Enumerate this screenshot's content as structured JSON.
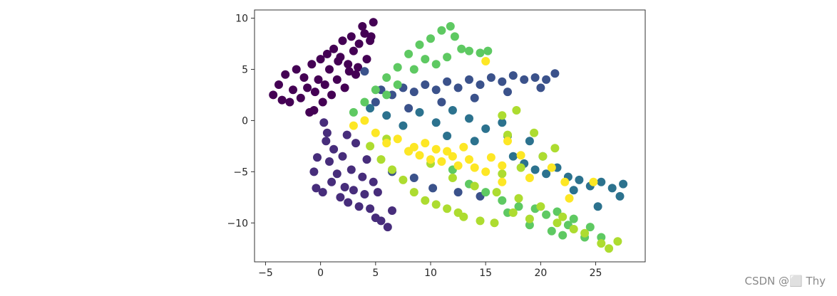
{
  "chart_data": {
    "type": "scatter",
    "title": "",
    "xlabel": "",
    "ylabel": "",
    "xlim": [
      -6.0,
      29.5
    ],
    "ylim": [
      -13.8,
      10.8
    ],
    "xticks": [
      -5,
      0,
      5,
      10,
      15,
      20,
      25
    ],
    "yticks": [
      -10,
      -5,
      0,
      5,
      10
    ],
    "xtick_labels": [
      "−5",
      "0",
      "5",
      "10",
      "15",
      "20",
      "25"
    ],
    "ytick_labels": [
      "−10",
      "−5",
      "0",
      "5",
      "10"
    ],
    "grid": false,
    "legend": "none",
    "colormap": "viridis",
    "series": [
      {
        "color": "#440154",
        "points": [
          [
            -4.3,
            2.5
          ],
          [
            -3.8,
            3.5
          ],
          [
            -3.2,
            4.5
          ],
          [
            -2.8,
            1.8
          ],
          [
            -2.5,
            3.0
          ],
          [
            -2.2,
            5.0
          ],
          [
            -1.8,
            2.2
          ],
          [
            -1.5,
            4.2
          ],
          [
            -1.2,
            3.2
          ],
          [
            -1.0,
            0.8
          ],
          [
            -0.8,
            5.5
          ],
          [
            -0.5,
            2.8
          ],
          [
            -0.2,
            4.0
          ],
          [
            0.0,
            6.0
          ],
          [
            0.2,
            1.8
          ],
          [
            0.4,
            3.5
          ],
          [
            0.6,
            6.5
          ],
          [
            0.8,
            5.0
          ],
          [
            1.0,
            2.5
          ],
          [
            1.2,
            7.0
          ],
          [
            1.5,
            4.0
          ],
          [
            1.8,
            6.2
          ],
          [
            2.0,
            7.8
          ],
          [
            2.2,
            3.2
          ],
          [
            2.5,
            5.5
          ],
          [
            2.8,
            8.2
          ],
          [
            3.0,
            6.8
          ],
          [
            3.2,
            4.5
          ],
          [
            3.5,
            7.5
          ],
          [
            3.8,
            9.2
          ],
          [
            4.0,
            8.5
          ],
          [
            4.2,
            6.0
          ],
          [
            4.5,
            7.8
          ],
          [
            4.8,
            9.6
          ],
          [
            3.4,
            5.2
          ],
          [
            1.6,
            5.8
          ],
          [
            -0.6,
            1.0
          ],
          [
            -3.5,
            2.0
          ],
          [
            2.6,
            4.8
          ],
          [
            4.6,
            8.2
          ]
        ]
      },
      {
        "color": "#472d7b",
        "points": [
          [
            0.3,
            -0.2
          ],
          [
            0.5,
            -2.0
          ],
          [
            0.8,
            -4.0
          ],
          [
            1.0,
            -6.0
          ],
          [
            0.2,
            -7.0
          ],
          [
            -0.4,
            -6.6
          ],
          [
            -0.6,
            -5.0
          ],
          [
            -0.3,
            -3.6
          ],
          [
            1.2,
            -2.8
          ],
          [
            1.5,
            -5.2
          ],
          [
            1.8,
            -7.5
          ],
          [
            2.0,
            -3.5
          ],
          [
            2.2,
            -6.5
          ],
          [
            2.5,
            -8.0
          ],
          [
            2.8,
            -4.8
          ],
          [
            3.0,
            -6.8
          ],
          [
            3.2,
            -2.2
          ],
          [
            3.5,
            -8.4
          ],
          [
            3.8,
            -5.5
          ],
          [
            4.0,
            -7.2
          ],
          [
            4.2,
            -3.8
          ],
          [
            4.5,
            -8.6
          ],
          [
            5.0,
            -9.5
          ],
          [
            5.5,
            -9.8
          ],
          [
            6.1,
            -10.4
          ],
          [
            5.2,
            -7.0
          ],
          [
            6.5,
            -8.8
          ],
          [
            0.6,
            -1.2
          ],
          [
            2.4,
            -1.4
          ],
          [
            4.8,
            -6.0
          ]
        ]
      },
      {
        "color": "#3b528b",
        "points": [
          [
            4.0,
            4.8
          ],
          [
            5.5,
            3.0
          ],
          [
            6.5,
            2.5
          ],
          [
            7.5,
            3.2
          ],
          [
            8.5,
            2.8
          ],
          [
            9.5,
            3.5
          ],
          [
            10.5,
            3.0
          ],
          [
            11.5,
            3.8
          ],
          [
            12.5,
            3.2
          ],
          [
            13.5,
            4.0
          ],
          [
            14.5,
            3.5
          ],
          [
            15.5,
            4.2
          ],
          [
            16.5,
            3.8
          ],
          [
            17.5,
            4.4
          ],
          [
            18.5,
            4.0
          ],
          [
            19.5,
            4.2
          ],
          [
            20.5,
            4.0
          ],
          [
            21.3,
            4.6
          ],
          [
            5.0,
            1.8
          ],
          [
            8.0,
            1.2
          ],
          [
            11.0,
            1.8
          ],
          [
            14.0,
            2.2
          ],
          [
            17.0,
            2.8
          ],
          [
            20.0,
            3.2
          ],
          [
            6.5,
            -5.0
          ],
          [
            8.5,
            -5.6
          ],
          [
            10.2,
            -6.6
          ],
          [
            12.5,
            -7.0
          ],
          [
            14.5,
            -7.4
          ]
        ]
      },
      {
        "color": "#2c728e",
        "points": [
          [
            4.5,
            1.2
          ],
          [
            6.0,
            0.5
          ],
          [
            7.5,
            -0.5
          ],
          [
            9.0,
            0.8
          ],
          [
            10.5,
            -0.2
          ],
          [
            12.0,
            1.0
          ],
          [
            13.5,
            0.2
          ],
          [
            15.0,
            -0.8
          ],
          [
            16.5,
            -0.2
          ],
          [
            17.5,
            -3.5
          ],
          [
            18.5,
            -4.2
          ],
          [
            19.5,
            -4.8
          ],
          [
            20.5,
            -5.2
          ],
          [
            21.5,
            -4.6
          ],
          [
            22.5,
            -5.5
          ],
          [
            23.5,
            -5.8
          ],
          [
            24.5,
            -6.4
          ],
          [
            25.5,
            -6.0
          ],
          [
            26.5,
            -6.6
          ],
          [
            27.5,
            -6.2
          ],
          [
            27.2,
            -7.4
          ],
          [
            25.2,
            -8.4
          ],
          [
            23.0,
            -6.8
          ],
          [
            20.2,
            -3.5
          ],
          [
            19.0,
            -2.0
          ],
          [
            17.0,
            -1.5
          ],
          [
            14.0,
            -2.0
          ],
          [
            11.5,
            -1.5
          ]
        ]
      },
      {
        "color": "#5ec962",
        "points": [
          [
            3.0,
            0.8
          ],
          [
            4.0,
            1.8
          ],
          [
            5.0,
            3.0
          ],
          [
            6.0,
            4.2
          ],
          [
            7.0,
            5.2
          ],
          [
            8.0,
            6.5
          ],
          [
            9.0,
            7.4
          ],
          [
            10.0,
            8.0
          ],
          [
            11.0,
            8.8
          ],
          [
            11.8,
            9.2
          ],
          [
            12.2,
            8.2
          ],
          [
            12.8,
            7.0
          ],
          [
            13.5,
            6.8
          ],
          [
            14.5,
            6.6
          ],
          [
            15.2,
            6.8
          ],
          [
            8.5,
            5.0
          ],
          [
            9.5,
            6.0
          ],
          [
            10.5,
            5.5
          ],
          [
            11.5,
            6.2
          ],
          [
            7.0,
            3.5
          ],
          [
            6.0,
            2.5
          ],
          [
            12.0,
            -4.8
          ],
          [
            13.5,
            -6.2
          ],
          [
            15.0,
            -7.0
          ],
          [
            16.5,
            -7.8
          ],
          [
            18.0,
            -8.4
          ],
          [
            19.5,
            -8.6
          ],
          [
            20.5,
            -9.2
          ],
          [
            21.5,
            -8.9
          ],
          [
            22.5,
            -10.2
          ],
          [
            23.0,
            -9.6
          ],
          [
            24.5,
            -10.4
          ],
          [
            25.5,
            -11.4
          ],
          [
            17.0,
            -9.0
          ],
          [
            19.0,
            -10.2
          ],
          [
            21.0,
            -10.8
          ],
          [
            22.0,
            -11.2
          ],
          [
            24.0,
            -11.4
          ]
        ]
      },
      {
        "color": "#addc30",
        "points": [
          [
            4.5,
            -2.5
          ],
          [
            5.5,
            -3.8
          ],
          [
            6.5,
            -4.8
          ],
          [
            7.5,
            -5.8
          ],
          [
            8.5,
            -7.0
          ],
          [
            9.5,
            -7.8
          ],
          [
            10.5,
            -8.2
          ],
          [
            11.5,
            -8.6
          ],
          [
            12.5,
            -9.0
          ],
          [
            13.0,
            -9.4
          ],
          [
            14.5,
            -9.8
          ],
          [
            15.8,
            -10.0
          ],
          [
            6.0,
            -1.8
          ],
          [
            8.0,
            -3.0
          ],
          [
            10.0,
            -4.2
          ],
          [
            12.0,
            -5.6
          ],
          [
            14.0,
            -6.4
          ],
          [
            16.0,
            -7.0
          ],
          [
            18.0,
            -7.6
          ],
          [
            20.0,
            -8.4
          ],
          [
            22.0,
            -9.4
          ],
          [
            24.0,
            -11.0
          ],
          [
            25.5,
            -12.0
          ],
          [
            26.2,
            -12.5
          ],
          [
            27.0,
            -11.8
          ],
          [
            23.0,
            -10.6
          ],
          [
            21.5,
            -10.0
          ],
          [
            19.0,
            -9.6
          ],
          [
            17.5,
            -9.0
          ],
          [
            16.5,
            -5.2
          ],
          [
            18.2,
            -4.6
          ],
          [
            20.2,
            -3.5
          ],
          [
            21.3,
            -2.7
          ],
          [
            19.4,
            -1.2
          ],
          [
            17.0,
            -1.4
          ],
          [
            16.5,
            0.5
          ],
          [
            17.8,
            1.0
          ]
        ]
      },
      {
        "color": "#fde725",
        "points": [
          [
            3.0,
            -0.5
          ],
          [
            4.0,
            0.0
          ],
          [
            5.0,
            -1.2
          ],
          [
            6.0,
            -2.2
          ],
          [
            7.0,
            -1.8
          ],
          [
            8.0,
            -3.0
          ],
          [
            8.5,
            -2.6
          ],
          [
            9.0,
            -3.4
          ],
          [
            9.5,
            -2.2
          ],
          [
            10.0,
            -3.8
          ],
          [
            10.5,
            -2.8
          ],
          [
            11.0,
            -4.0
          ],
          [
            11.5,
            -3.0
          ],
          [
            12.0,
            -3.5
          ],
          [
            12.5,
            -4.4
          ],
          [
            13.0,
            -2.6
          ],
          [
            13.5,
            -3.8
          ],
          [
            14.0,
            -4.6
          ],
          [
            15.0,
            -5.0
          ],
          [
            15.5,
            -3.6
          ],
          [
            16.5,
            -4.4
          ],
          [
            17.0,
            -2.0
          ],
          [
            18.2,
            -3.4
          ],
          [
            15.0,
            5.8
          ],
          [
            16.5,
            -6.0
          ],
          [
            19.0,
            -5.6
          ],
          [
            22.2,
            -6.0
          ],
          [
            22.6,
            -7.6
          ],
          [
            24.8,
            -6.0
          ],
          [
            21.0,
            -4.6
          ]
        ]
      }
    ]
  },
  "watermark": "CSDN @⬜ Thy"
}
